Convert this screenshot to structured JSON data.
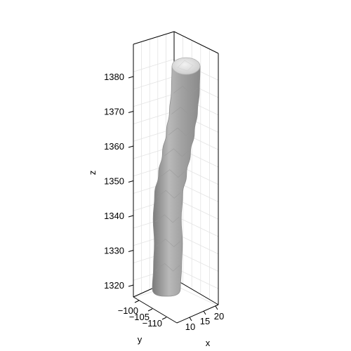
{
  "chart_data": {
    "type": "3d-surface",
    "title": "",
    "xlabel": "x",
    "ylabel": "y",
    "zlabel": "z",
    "grid": true,
    "x_ticks": [
      "10",
      "15",
      "20"
    ],
    "y_ticks": [
      "−100",
      "−105",
      "−110"
    ],
    "z_ticks": [
      "1320",
      "1330",
      "1340",
      "1350",
      "1360",
      "1370",
      "1380"
    ],
    "zlim": [
      1316,
      1389
    ],
    "surface": {
      "description_free": true,
      "color": "#a6a6a6",
      "centerline_z": [
        1319,
        1325,
        1332,
        1339,
        1346,
        1352,
        1358,
        1364,
        1370,
        1376,
        1383
      ],
      "centerline_offset": [
        0.0,
        0.04,
        0.07,
        0.03,
        0.08,
        0.22,
        0.36,
        0.5,
        0.61,
        0.68,
        0.7
      ]
    }
  }
}
